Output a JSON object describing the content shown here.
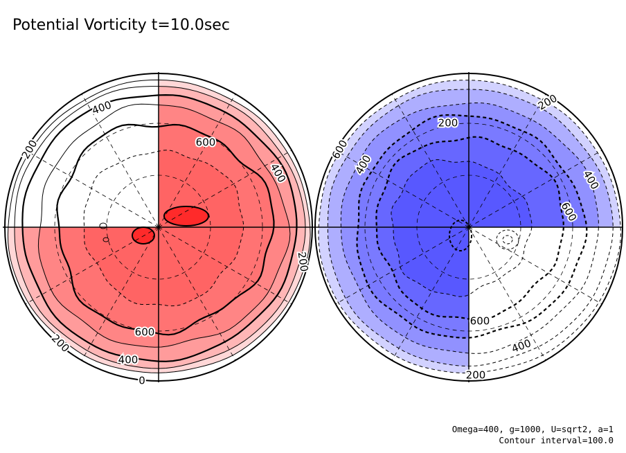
{
  "title": "Potential Vorticity t=10.0sec",
  "footer": {
    "line1": "Omega=400, g=1000, U=sqrt2, a=1",
    "line2": "Contour interval=100.0"
  },
  "chart_data": [
    {
      "type": "polar-contour",
      "hemisphere": "north",
      "fill_color": "#ff2020",
      "contour_levels": [
        0,
        100,
        200,
        300,
        400,
        500,
        600,
        700
      ],
      "labeled_levels": [
        "400",
        "200",
        "600",
        "400",
        "200",
        "600",
        "400",
        "200",
        "0"
      ],
      "grid": true
    },
    {
      "type": "polar-contour",
      "hemisphere": "south",
      "fill_color": "#2020ff",
      "contour_levels": [
        -700,
        -600,
        -500,
        -400,
        -300,
        -200,
        -100
      ],
      "labeled_levels": [
        "200",
        "600",
        "200",
        "400",
        "400",
        "600",
        "600",
        "400",
        "200"
      ],
      "grid": true
    }
  ],
  "contour_interval": 100.0
}
